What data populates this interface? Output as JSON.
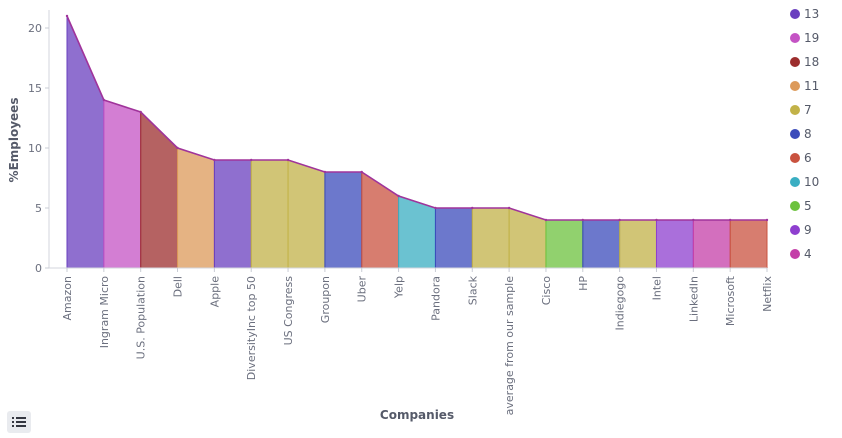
{
  "chart_data": {
    "type": "area",
    "xlabel": "Companies",
    "ylabel": "%Employees",
    "ylim": [
      0,
      21.5
    ],
    "yticks": [
      0,
      5,
      10,
      15,
      20
    ],
    "grid": false,
    "legend_position": "right",
    "categories": [
      "Amazon",
      "Ingram Micro",
      "U.S. Population",
      "Dell",
      "Apple",
      "DiversityInc top 50",
      "US Congress",
      "Groupon",
      "Uber",
      "Yelp",
      "Pandora",
      "Slack",
      "average from our sample",
      "Cisco",
      "HP",
      "Indiegogo",
      "Intel",
      "LinkedIn",
      "Microsoft",
      "Netflix"
    ],
    "values": [
      21,
      14,
      13,
      10,
      9,
      9,
      9,
      8,
      8,
      6,
      5,
      5,
      5,
      4,
      4,
      4,
      4,
      4,
      4,
      4
    ],
    "segment_categories": [
      "13",
      "19",
      "18",
      "11",
      "13",
      "7",
      "7",
      "8",
      "6",
      "10",
      "8",
      "7",
      "7",
      "5",
      "8",
      "7",
      "9",
      "4",
      "6",
      "6"
    ],
    "legend": [
      {
        "label": "13",
        "color": "#6a3fbf"
      },
      {
        "label": "19",
        "color": "#c453c4"
      },
      {
        "label": "18",
        "color": "#9c2d2d"
      },
      {
        "label": "11",
        "color": "#dc9a5a"
      },
      {
        "label": "7",
        "color": "#c2b248"
      },
      {
        "label": "8",
        "color": "#3b4bbb"
      },
      {
        "label": "6",
        "color": "#c9523f"
      },
      {
        "label": "10",
        "color": "#3aaec2"
      },
      {
        "label": "5",
        "color": "#6cc23e"
      },
      {
        "label": "9",
        "color": "#8e3fcf"
      },
      {
        "label": "4",
        "color": "#c43fa8"
      }
    ],
    "line_color": "#a0349b"
  }
}
